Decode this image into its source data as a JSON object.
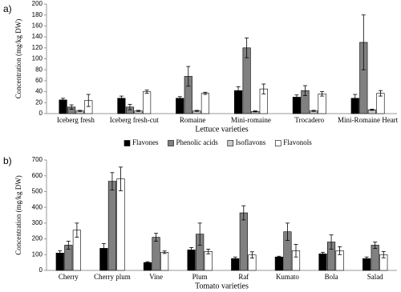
{
  "chart_data": [
    {
      "type": "bar",
      "panel": "a)",
      "ylabel": "Concentration (mg/kg DW)",
      "xlabel": "Lettuce varieties",
      "categories": [
        "Iceberg fresh",
        "Iceberg fresh-cut",
        "Romaine",
        "Mini-romaine",
        "Trocadero",
        "Mini-Romaine Heart"
      ],
      "series": [
        {
          "name": "Flavones",
          "color": "#000000",
          "values": [
            25,
            28,
            28,
            42,
            30,
            28
          ],
          "errors": [
            3,
            4,
            3,
            7,
            4,
            7
          ]
        },
        {
          "name": "Phenolic acids",
          "color": "#808080",
          "values": [
            12,
            12,
            68,
            120,
            42,
            130
          ],
          "errors": [
            4,
            5,
            18,
            18,
            9,
            50
          ]
        },
        {
          "name": "Isoflavons",
          "color": "#c8c8c8",
          "values": [
            5,
            5,
            5,
            4,
            5,
            7
          ],
          "errors": [
            1,
            1,
            1,
            1,
            1,
            1
          ]
        },
        {
          "name": "Flavonols",
          "color": "#ffffff",
          "values": [
            24,
            40,
            37,
            45,
            36,
            37
          ],
          "errors": [
            11,
            3,
            2,
            9,
            4,
            5
          ]
        }
      ],
      "ylim": [
        0,
        200
      ],
      "yticks": [
        0,
        20,
        40,
        60,
        80,
        100,
        120,
        140,
        160,
        180,
        200
      ],
      "legend": "bottom"
    },
    {
      "type": "bar",
      "panel": "b)",
      "ylabel": "Concentration (mg/kg DW)",
      "xlabel": "Tomato varieties",
      "categories": [
        "Cherry",
        "Cherry plum",
        "Vine",
        "Plum",
        "Raf",
        "Kumato",
        "Bola",
        "Salad"
      ],
      "series": [
        {
          "color": "#000000",
          "values": [
            110,
            140,
            50,
            130,
            75,
            85,
            105,
            75
          ],
          "errors": [
            15,
            30,
            5,
            15,
            10,
            5,
            10,
            10
          ]
        },
        {
          "color": "#808080",
          "values": [
            160,
            565,
            210,
            230,
            365,
            245,
            180,
            160
          ],
          "errors": [
            25,
            55,
            25,
            70,
            45,
            55,
            45,
            20
          ]
        },
        {
          "color": "#ffffff",
          "values": [
            255,
            580,
            115,
            120,
            98,
            125,
            125,
            100
          ],
          "errors": [
            45,
            75,
            8,
            15,
            20,
            40,
            25,
            20
          ]
        }
      ],
      "ylim": [
        0,
        700
      ],
      "yticks": [
        0,
        100,
        200,
        300,
        400,
        500,
        600,
        700
      ]
    }
  ]
}
